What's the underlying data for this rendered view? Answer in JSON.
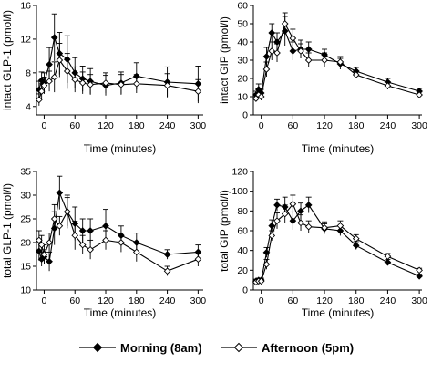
{
  "chart_data": [
    {
      "type": "line",
      "xlabel": "Time (minutes)",
      "ylabel": "intact GLP-1 (pmol/l)",
      "xlim": [
        -15,
        310
      ],
      "ylim": [
        3,
        16
      ],
      "xticks": [
        0,
        60,
        120,
        180,
        240,
        300
      ],
      "yticks": [
        4,
        8,
        12,
        16
      ],
      "series": [
        {
          "name": "Morning (8am)",
          "x": [
            -10,
            -5,
            0,
            10,
            20,
            30,
            45,
            60,
            75,
            90,
            120,
            150,
            180,
            240,
            300
          ],
          "y": [
            6.0,
            7.1,
            6.8,
            9.0,
            12.2,
            10.3,
            9.6,
            8.0,
            7.3,
            7.0,
            6.5,
            6.8,
            7.6,
            6.9,
            6.7
          ],
          "err": [
            1.0,
            1.0,
            1.2,
            2.0,
            2.8,
            2.5,
            2.8,
            1.8,
            1.5,
            1.5,
            1.2,
            1.3,
            1.6,
            1.8,
            2.1
          ]
        },
        {
          "name": "Afternoon (5pm)",
          "x": [
            -10,
            -5,
            0,
            10,
            20,
            30,
            45,
            60,
            75,
            90,
            120,
            150,
            180,
            240,
            300
          ],
          "y": [
            4.8,
            5.8,
            6.5,
            7.0,
            7.5,
            9.5,
            8.2,
            7.2,
            6.8,
            6.6,
            6.8,
            6.6,
            6.7,
            6.5,
            5.8
          ],
          "err": [
            0.7,
            0.9,
            1.0,
            1.2,
            1.8,
            2.0,
            2.1,
            1.5,
            1.3,
            1.2,
            1.2,
            1.2,
            1.1,
            1.4,
            1.4
          ]
        }
      ]
    },
    {
      "type": "line",
      "xlabel": "Time (minutes)",
      "ylabel": "intact GIP (pmol/l)",
      "xlim": [
        -15,
        305
      ],
      "ylim": [
        0,
        60
      ],
      "xticks": [
        0,
        60,
        120,
        180,
        240,
        300
      ],
      "yticks": [
        0,
        10,
        20,
        30,
        40,
        50,
        60
      ],
      "series": [
        {
          "name": "Morning (8am)",
          "x": [
            -10,
            -5,
            0,
            10,
            20,
            30,
            45,
            60,
            75,
            90,
            120,
            150,
            180,
            240,
            300
          ],
          "y": [
            11,
            14,
            12,
            32,
            45,
            40,
            46,
            35,
            36,
            36,
            33,
            28,
            24,
            18,
            13
          ],
          "err": [
            2,
            3,
            2,
            5,
            5,
            5,
            8,
            5,
            5,
            4,
            3,
            3,
            2,
            2,
            1.5
          ]
        },
        {
          "name": "Afternoon (5pm)",
          "x": [
            -10,
            -5,
            0,
            10,
            20,
            30,
            45,
            60,
            75,
            90,
            120,
            150,
            180,
            240,
            300
          ],
          "y": [
            9,
            11,
            10,
            25,
            35,
            34,
            50,
            42,
            35,
            30,
            30,
            29,
            22,
            16,
            11
          ],
          "err": [
            1.5,
            2,
            2,
            4,
            5,
            5,
            6,
            5,
            4,
            4,
            4,
            3,
            2,
            2,
            1.5
          ]
        }
      ]
    },
    {
      "type": "line",
      "xlabel": "Time (minutes)",
      "ylabel": "total GLP-1 (pmol/l)",
      "xlim": [
        -15,
        310
      ],
      "ylim": [
        10,
        35
      ],
      "xticks": [
        0,
        60,
        120,
        180,
        240,
        300
      ],
      "yticks": [
        10,
        15,
        20,
        25,
        30,
        35
      ],
      "series": [
        {
          "name": "Morning (8am)",
          "x": [
            -10,
            -5,
            0,
            10,
            20,
            30,
            45,
            60,
            75,
            90,
            120,
            150,
            180,
            240,
            300
          ],
          "y": [
            18.2,
            16.5,
            17.0,
            16.0,
            23.0,
            30.5,
            26.5,
            24.0,
            22.5,
            22.5,
            23.5,
            21.5,
            20.0,
            17.5,
            18.0
          ],
          "err": [
            2.0,
            1.5,
            1.5,
            2.0,
            3.5,
            3.5,
            3.5,
            3.5,
            2.5,
            2.5,
            3.5,
            2.0,
            2.0,
            1.0,
            1.5
          ]
        },
        {
          "name": "Afternoon (5pm)",
          "x": [
            -10,
            -5,
            0,
            10,
            20,
            30,
            45,
            60,
            75,
            90,
            120,
            150,
            180,
            240,
            300
          ],
          "y": [
            20.5,
            19.5,
            17.5,
            20.0,
            25.0,
            23.5,
            26.5,
            21.5,
            19.5,
            18.5,
            20.5,
            20.0,
            18.0,
            14.0,
            16.5
          ],
          "err": [
            2.0,
            2.0,
            2.0,
            2.0,
            3.0,
            2.0,
            3.0,
            3.0,
            2.0,
            2.0,
            2.0,
            2.0,
            2.0,
            1.0,
            1.5
          ]
        }
      ]
    },
    {
      "type": "line",
      "xlabel": "Time (minutes)",
      "ylabel": "total GIP (pmol/l)",
      "xlim": [
        -15,
        305
      ],
      "ylim": [
        0,
        120
      ],
      "xticks": [
        0,
        60,
        120,
        180,
        240,
        300
      ],
      "yticks": [
        0,
        20,
        40,
        60,
        80,
        100,
        120
      ],
      "series": [
        {
          "name": "Morning (8am)",
          "x": [
            -10,
            -5,
            0,
            10,
            20,
            30,
            45,
            60,
            75,
            90,
            120,
            150,
            180,
            240,
            300
          ],
          "y": [
            9,
            10,
            10,
            38,
            65,
            86,
            84,
            70,
            80,
            86,
            62,
            60,
            45,
            28,
            14
          ],
          "err": [
            2,
            2,
            2,
            5,
            6,
            6,
            10,
            9,
            8,
            8,
            5,
            5,
            4,
            3,
            2
          ]
        },
        {
          "name": "Afternoon (5pm)",
          "x": [
            -10,
            -5,
            0,
            10,
            20,
            30,
            45,
            60,
            75,
            90,
            120,
            150,
            180,
            240,
            300
          ],
          "y": [
            8,
            9,
            9,
            26,
            55,
            70,
            77,
            87,
            68,
            64,
            63,
            65,
            52,
            34,
            20
          ],
          "err": [
            2,
            2,
            2,
            5,
            5,
            8,
            9,
            9,
            8,
            6,
            6,
            5,
            4,
            3,
            2
          ]
        }
      ]
    }
  ],
  "legend": {
    "items": [
      {
        "label": "Morning (8am)",
        "marker": "filled-diamond"
      },
      {
        "label": "Afternoon (5pm)",
        "marker": "open-diamond"
      }
    ]
  },
  "colors": {
    "line": "#000000",
    "filled_marker": "#000000",
    "open_marker": "#ffffff"
  }
}
